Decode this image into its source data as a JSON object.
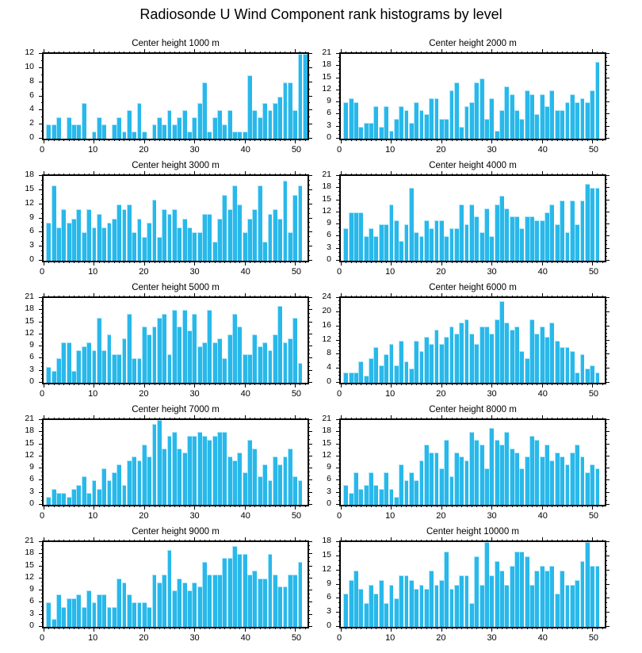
{
  "chart_data": {
    "type": "bar",
    "title": "Radiosonde U Wind Component rank histograms by level",
    "layout": {
      "grid": "5 rows x 2 columns",
      "legend": "none",
      "gridlines": false,
      "tick_direction": "outward"
    },
    "colors": {
      "bar_fill": "#29b8ea",
      "bar_edge_highlight": "#a8e6fa",
      "axis": "#000000",
      "background": "#ffffff"
    },
    "x_axis": {
      "label": "",
      "major_ticks": [
        0,
        10,
        20,
        30,
        40,
        50
      ],
      "minor_tick_every": 1,
      "xlim": [
        0,
        52.5
      ]
    },
    "plots": [
      {
        "title": "Center height 1000 m",
        "ylim": [
          0,
          12
        ],
        "ystep": 2,
        "y_ticks": [
          0,
          2,
          4,
          6,
          8,
          10,
          12
        ],
        "values": [
          2,
          2,
          3,
          0,
          3,
          2,
          2,
          5,
          0,
          1,
          3,
          2,
          0,
          2,
          3,
          1,
          4,
          1,
          5,
          1,
          0,
          2,
          3,
          2,
          4,
          2,
          3,
          4,
          1,
          3,
          5,
          8,
          1,
          3,
          4,
          2,
          4,
          1,
          1,
          1,
          9,
          4,
          3,
          5,
          4,
          5,
          6,
          8,
          8,
          4,
          12,
          12
        ]
      },
      {
        "title": "Center height 2000 m",
        "ylim": [
          0,
          21
        ],
        "ystep": 3,
        "y_ticks": [
          0,
          3,
          6,
          9,
          12,
          15,
          18,
          21
        ],
        "values": [
          9,
          10,
          9,
          3,
          4,
          4,
          8,
          3,
          8,
          2,
          5,
          8,
          7,
          4,
          9,
          7,
          6,
          10,
          10,
          5,
          5,
          12,
          14,
          3,
          8,
          9,
          14,
          15,
          5,
          10,
          2,
          7,
          13,
          11,
          7,
          5,
          12,
          11,
          6,
          11,
          8,
          12,
          7,
          7,
          9,
          11,
          9,
          10,
          9,
          12,
          19
        ]
      },
      {
        "title": "Center height 3000 m",
        "ylim": [
          0,
          18
        ],
        "ystep": 3,
        "y_ticks": [
          0,
          3,
          6,
          9,
          12,
          15,
          18
        ],
        "values": [
          8,
          16,
          7,
          11,
          8,
          9,
          11,
          6,
          11,
          7,
          10,
          7,
          8,
          9,
          12,
          11,
          12,
          6,
          9,
          5,
          8,
          13,
          5,
          11,
          10,
          11,
          7,
          9,
          7,
          6,
          6,
          10,
          10,
          4,
          9,
          14,
          11,
          16,
          12,
          6,
          9,
          11,
          16,
          4,
          10,
          11,
          9,
          17,
          6,
          14,
          16
        ]
      },
      {
        "title": "Center height 4000 m",
        "ylim": [
          0,
          21
        ],
        "ystep": 3,
        "y_ticks": [
          0,
          3,
          6,
          9,
          12,
          15,
          18,
          21
        ],
        "values": [
          8,
          12,
          12,
          12,
          6,
          8,
          6,
          9,
          9,
          14,
          10,
          5,
          9,
          18,
          7,
          6,
          10,
          8,
          10,
          10,
          6,
          8,
          8,
          14,
          9,
          14,
          11,
          7,
          13,
          6,
          14,
          16,
          13,
          11,
          11,
          8,
          11,
          11,
          10,
          10,
          12,
          14,
          9,
          15,
          7,
          15,
          9,
          15,
          19,
          18,
          18
        ]
      },
      {
        "title": "Center height 5000 m",
        "ylim": [
          0,
          21
        ],
        "ystep": 3,
        "y_ticks": [
          0,
          3,
          6,
          9,
          12,
          15,
          18,
          21
        ],
        "values": [
          4,
          3,
          6,
          10,
          10,
          3,
          8,
          9,
          10,
          8,
          16,
          8,
          12,
          7,
          7,
          11,
          17,
          6,
          6,
          14,
          12,
          14,
          16,
          17,
          7,
          18,
          14,
          18,
          13,
          17,
          9,
          10,
          18,
          10,
          11,
          6,
          12,
          17,
          14,
          7,
          7,
          12,
          9,
          10,
          8,
          12,
          19,
          10,
          11,
          16,
          5
        ]
      },
      {
        "title": "Center height 6000 m",
        "ylim": [
          0,
          24
        ],
        "ystep": 4,
        "y_ticks": [
          0,
          4,
          8,
          12,
          16,
          20,
          24
        ],
        "values": [
          3,
          3,
          3,
          6,
          2,
          7,
          10,
          5,
          8,
          11,
          5,
          12,
          6,
          4,
          12,
          9,
          13,
          11,
          15,
          11,
          13,
          16,
          14,
          17,
          18,
          14,
          11,
          16,
          16,
          14,
          18,
          23,
          17,
          15,
          16,
          9,
          7,
          18,
          14,
          16,
          13,
          17,
          12,
          10,
          10,
          9,
          3,
          8,
          4,
          5,
          3
        ]
      },
      {
        "title": "Center height 7000 m",
        "ylim": [
          0,
          21
        ],
        "ystep": 3,
        "y_ticks": [
          0,
          3,
          6,
          9,
          12,
          15,
          18,
          21
        ],
        "values": [
          2,
          4,
          3,
          3,
          2,
          4,
          5,
          7,
          3,
          6,
          4,
          9,
          6,
          8,
          10,
          5,
          11,
          12,
          11,
          15,
          12,
          20,
          21,
          14,
          17,
          18,
          14,
          13,
          17,
          17,
          18,
          17,
          16,
          17,
          18,
          18,
          12,
          11,
          13,
          8,
          16,
          14,
          7,
          10,
          6,
          12,
          10,
          12,
          14,
          7,
          6
        ]
      },
      {
        "title": "Center height 8000 m",
        "ylim": [
          0,
          21
        ],
        "ystep": 3,
        "y_ticks": [
          0,
          3,
          6,
          9,
          12,
          15,
          18,
          21
        ],
        "values": [
          5,
          3,
          8,
          4,
          5,
          8,
          5,
          4,
          8,
          4,
          2,
          10,
          6,
          8,
          6,
          11,
          15,
          13,
          13,
          9,
          16,
          7,
          13,
          12,
          11,
          18,
          16,
          15,
          9,
          19,
          16,
          15,
          18,
          14,
          13,
          9,
          12,
          17,
          16,
          12,
          15,
          11,
          13,
          12,
          10,
          13,
          15,
          12,
          8,
          10,
          9
        ]
      },
      {
        "title": "Center height 9000 m",
        "ylim": [
          0,
          21
        ],
        "ystep": 3,
        "y_ticks": [
          0,
          3,
          6,
          9,
          12,
          15,
          18,
          21
        ],
        "values": [
          6,
          2,
          8,
          5,
          7,
          7,
          8,
          5,
          9,
          6,
          8,
          8,
          5,
          5,
          12,
          11,
          8,
          6,
          6,
          6,
          5,
          13,
          11,
          13,
          19,
          9,
          12,
          11,
          9,
          11,
          10,
          16,
          13,
          13,
          13,
          17,
          17,
          20,
          18,
          18,
          13,
          14,
          12,
          12,
          18,
          13,
          10,
          10,
          13,
          13,
          16
        ]
      },
      {
        "title": "Center height 10000 m",
        "ylim": [
          0,
          18
        ],
        "ystep": 3,
        "y_ticks": [
          0,
          3,
          6,
          9,
          12,
          15,
          18
        ],
        "values": [
          7,
          10,
          12,
          8,
          5,
          9,
          7,
          10,
          5,
          9,
          6,
          11,
          11,
          10,
          8,
          9,
          8,
          12,
          9,
          10,
          16,
          8,
          9,
          11,
          11,
          5,
          15,
          9,
          18,
          11,
          14,
          12,
          9,
          13,
          16,
          16,
          15,
          9,
          12,
          13,
          12,
          13,
          7,
          12,
          9,
          9,
          10,
          14,
          18,
          13,
          13
        ]
      }
    ]
  }
}
